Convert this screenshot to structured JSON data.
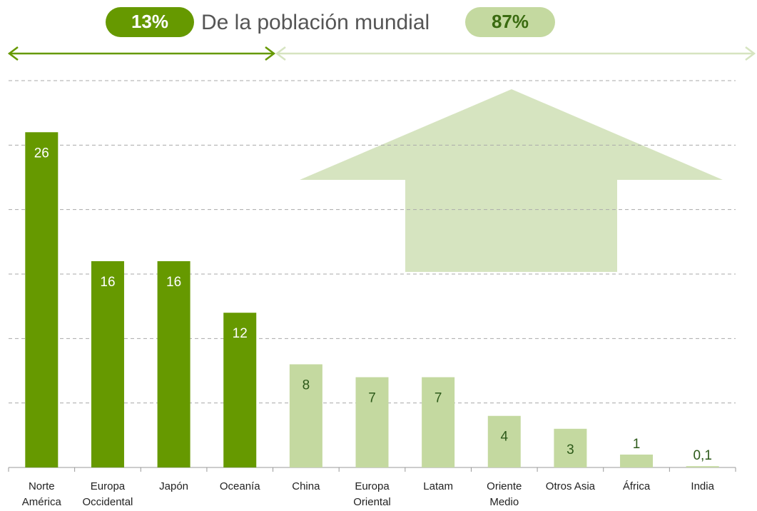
{
  "chart_data": {
    "type": "bar",
    "header": {
      "left_share": "13%",
      "title": "De la población mundial",
      "right_share": "87%"
    },
    "categories": [
      "Norte América",
      "Europa Occidental",
      "Japón",
      "Oceanía",
      "China",
      "Europa Oriental",
      "Latam",
      "Oriente Medio",
      "Otros Asia",
      "África",
      "India"
    ],
    "values": [
      26,
      16,
      16,
      12,
      8,
      7,
      7,
      4,
      3,
      1,
      0.1
    ],
    "value_labels": [
      "26",
      "16",
      "16",
      "12",
      "8",
      "7",
      "7",
      "4",
      "3",
      "1",
      "0,1"
    ],
    "colors": [
      "#669900",
      "#669900",
      "#669900",
      "#669900",
      "#c4d9a0",
      "#c4d9a0",
      "#c4d9a0",
      "#c4d9a0",
      "#c4d9a0",
      "#c4d9a0",
      "#c4d9a0"
    ],
    "ylim": [
      0,
      30
    ],
    "yticks": [
      0,
      5,
      10,
      15,
      20,
      25,
      30
    ],
    "grid": true
  }
}
